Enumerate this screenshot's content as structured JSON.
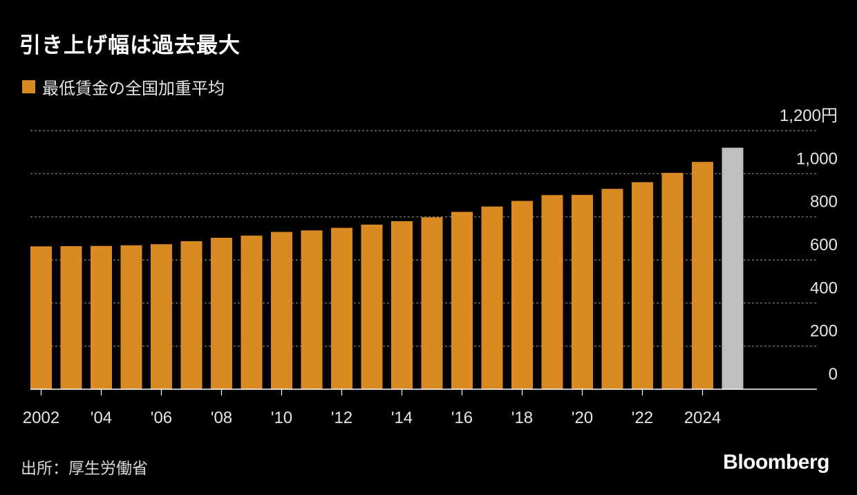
{
  "title": "引き上げ幅は過去最大",
  "source": "出所：厚生労働省",
  "brand": "Bloomberg",
  "colors": {
    "bar": "#d98a22",
    "highlight": "#bfbfbf",
    "grid": "#8a8a8a",
    "axis": "#ffffff"
  },
  "chart_data": {
    "type": "bar",
    "legend": [
      {
        "name": "最低賃金の全国加重平均",
        "color": "#d98a22"
      }
    ],
    "legend_position": "top-left",
    "x": [
      2002,
      2003,
      2004,
      2005,
      2006,
      2007,
      2008,
      2009,
      2010,
      2011,
      2012,
      2013,
      2014,
      2015,
      2016,
      2017,
      2018,
      2019,
      2020,
      2021,
      2022,
      2023,
      2024,
      2025
    ],
    "tick_labels": [
      {
        "x": 2002,
        "label": "2002"
      },
      {
        "x": 2004,
        "label": "'04"
      },
      {
        "x": 2006,
        "label": "'06"
      },
      {
        "x": 2008,
        "label": "'08"
      },
      {
        "x": 2010,
        "label": "'10"
      },
      {
        "x": 2012,
        "label": "'12"
      },
      {
        "x": 2014,
        "label": "'14"
      },
      {
        "x": 2016,
        "label": "'16"
      },
      {
        "x": 2018,
        "label": "'18"
      },
      {
        "x": 2020,
        "label": "'20"
      },
      {
        "x": 2022,
        "label": "'22"
      },
      {
        "x": 2024,
        "label": "2024"
      }
    ],
    "series": [
      {
        "name": "最低賃金の全国加重平均",
        "values": [
          663,
          664,
          665,
          668,
          673,
          687,
          703,
          713,
          730,
          737,
          749,
          764,
          780,
          798,
          823,
          848,
          874,
          901,
          902,
          930,
          961,
          1004,
          1055,
          1121
        ],
        "highlight_last": true
      }
    ],
    "y_ticks": [
      {
        "value": 0,
        "label": "0"
      },
      {
        "value": 200,
        "label": "200"
      },
      {
        "value": 400,
        "label": "400"
      },
      {
        "value": 600,
        "label": "600"
      },
      {
        "value": 800,
        "label": "800"
      },
      {
        "value": 1000,
        "label": "1,000"
      },
      {
        "value": 1200,
        "label": "1,200円"
      }
    ],
    "ylim": [
      0,
      1200
    ],
    "grid": true,
    "y_axis_position": "right"
  }
}
